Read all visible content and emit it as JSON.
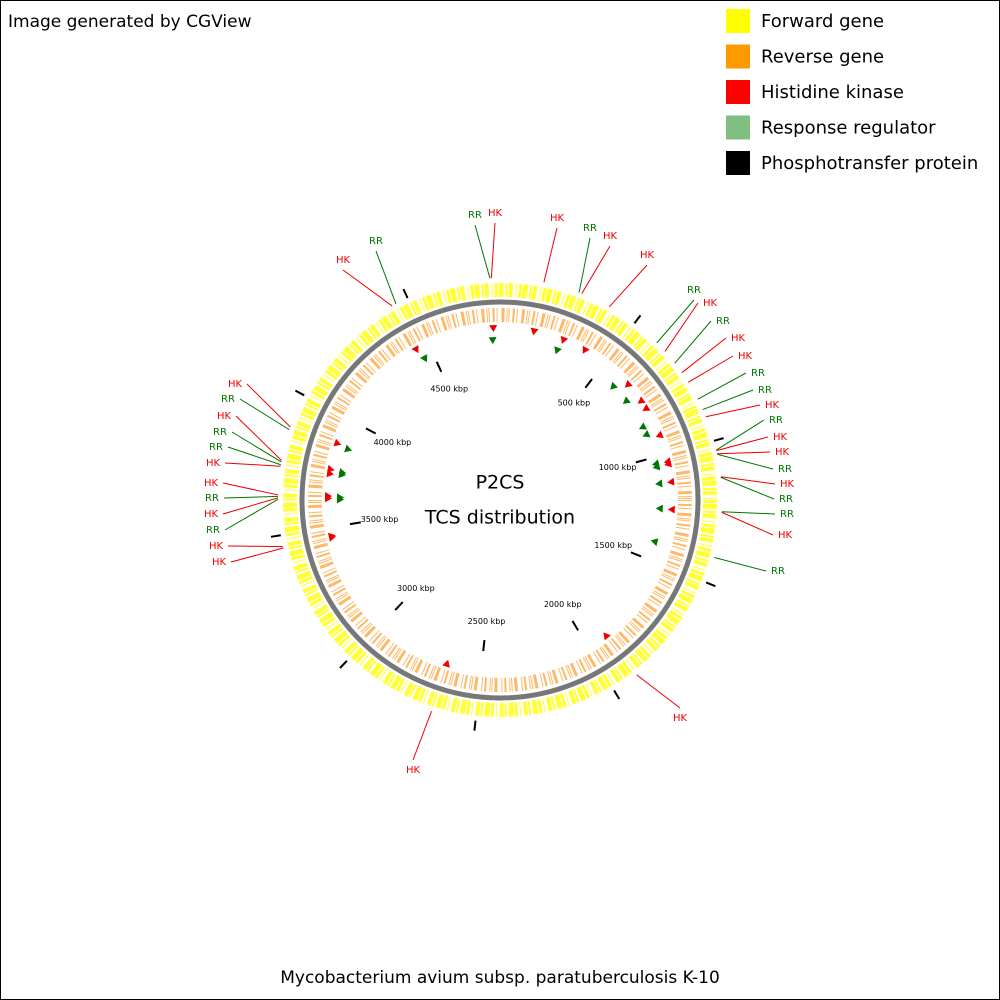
{
  "header": {
    "credit": "Image generated by CGView"
  },
  "legend": [
    {
      "label": "Forward gene",
      "color": "#ffff00"
    },
    {
      "label": "Reverse gene",
      "color": "#ff9900"
    },
    {
      "label": "Histidine kinase",
      "color": "#ff0000"
    },
    {
      "label": "Response regulator",
      "color": "#7fbf7f"
    },
    {
      "label": "Phosphotransfer protein",
      "color": "#000000"
    }
  ],
  "map": {
    "title": "P2CS",
    "subtitle": "TCS distribution",
    "range": [
      0,
      4830
    ],
    "ticks": [
      {
        "value": 500,
        "label": "500 kbp"
      },
      {
        "value": 1000,
        "label": "1000 kbp"
      },
      {
        "value": 1500,
        "label": "1500 kbp"
      },
      {
        "value": 2000,
        "label": "2000 kbp"
      },
      {
        "value": 2500,
        "label": "2500 kbp"
      },
      {
        "value": 3000,
        "label": "3000 kbp"
      },
      {
        "value": 3500,
        "label": "3500 kbp"
      },
      {
        "value": 4000,
        "label": "4000 kbp"
      },
      {
        "value": 4500,
        "label": "4500 kbp"
      }
    ],
    "features": [
      {
        "label": "RR",
        "position": 4795,
        "color": "#007700"
      },
      {
        "label": "HK",
        "position": 4800,
        "color": "#ee0000"
      },
      {
        "label": "HK",
        "position": 153,
        "color": "#ee0000"
      },
      {
        "label": "RR",
        "position": 280,
        "color": "#007700"
      },
      {
        "label": "HK",
        "position": 290,
        "color": "#ee0000"
      },
      {
        "label": "HK",
        "position": 396,
        "color": "#ee0000"
      },
      {
        "label": "RR",
        "position": 603,
        "color": "#007700"
      },
      {
        "label": "HK",
        "position": 644,
        "color": "#ee0000"
      },
      {
        "label": "RR",
        "position": 697,
        "color": "#007700"
      },
      {
        "label": "HK",
        "position": 738,
        "color": "#ee0000"
      },
      {
        "label": "HK",
        "position": 778,
        "color": "#ee0000"
      },
      {
        "label": "RR",
        "position": 845,
        "color": "#007700"
      },
      {
        "label": "RR",
        "position": 885,
        "color": "#007700"
      },
      {
        "label": "HK",
        "position": 912,
        "color": "#ee0000"
      },
      {
        "label": "RR",
        "position": 1033,
        "color": "#007700"
      },
      {
        "label": "HK",
        "position": 1035,
        "color": "#ee0000"
      },
      {
        "label": "HK",
        "position": 1046,
        "color": "#ee0000"
      },
      {
        "label": "RR",
        "position": 1048,
        "color": "#007700"
      },
      {
        "label": "HK",
        "position": 1127,
        "color": "#ee0000"
      },
      {
        "label": "RR",
        "position": 1129,
        "color": "#007700"
      },
      {
        "label": "RR",
        "position": 1248,
        "color": "#007700"
      },
      {
        "label": "HK",
        "position": 1250,
        "color": "#ee0000"
      },
      {
        "label": "RR",
        "position": 1409,
        "color": "#007700"
      },
      {
        "label": "HK",
        "position": 1905,
        "color": "#ee0000"
      },
      {
        "label": "HK",
        "position": 2656,
        "color": "#ee0000"
      },
      {
        "label": "HK",
        "position": 3880,
        "color": "#ee0000"
      },
      {
        "label": "RR",
        "position": 3870,
        "color": "#007700"
      },
      {
        "label": "HK",
        "position": 3760,
        "color": "#ee0000"
      },
      {
        "label": "RR",
        "position": 3755,
        "color": "#007700"
      },
      {
        "label": "RR",
        "position": 3745,
        "color": "#007700"
      },
      {
        "label": "HK",
        "position": 3740,
        "color": "#ee0000"
      },
      {
        "label": "HK",
        "position": 3640,
        "color": "#ee0000"
      },
      {
        "label": "RR",
        "position": 3635,
        "color": "#007700"
      },
      {
        "label": "HK",
        "position": 3630,
        "color": "#ee0000"
      },
      {
        "label": "RR",
        "position": 3625,
        "color": "#007700"
      },
      {
        "label": "HK",
        "position": 3460,
        "color": "#ee0000"
      },
      {
        "label": "HK",
        "position": 3455,
        "color": "#ee0000"
      },
      {
        "label": "HK",
        "position": 4440,
        "color": "#ee0000"
      },
      {
        "label": "RR",
        "position": 4455,
        "color": "#007700"
      }
    ]
  },
  "footer": {
    "organism": "Mycobacterium avium subsp. paratuberculosis K-10"
  }
}
